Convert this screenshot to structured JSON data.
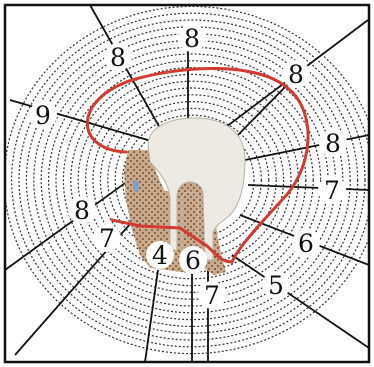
{
  "diagram": {
    "labels": [
      {
        "id": "top",
        "text": "8"
      },
      {
        "id": "upper-left",
        "text": "8"
      },
      {
        "id": "upper-right",
        "text": "8"
      },
      {
        "id": "left",
        "text": "9"
      },
      {
        "id": "right-upper",
        "text": "8"
      },
      {
        "id": "right-middle",
        "text": "7"
      },
      {
        "id": "right-lower",
        "text": "6"
      },
      {
        "id": "bottom-right",
        "text": "5"
      },
      {
        "id": "lower-left",
        "text": "8"
      },
      {
        "id": "lower-left-inner",
        "text": "7"
      },
      {
        "id": "bottom-inner",
        "text": "4"
      },
      {
        "id": "bottom-center",
        "text": "6"
      },
      {
        "id": "bottom-stem",
        "text": "7"
      }
    ],
    "colors": {
      "outline": "#d23a32",
      "contour": "#333333",
      "tooth": "#ece8e2",
      "bone": "#c9a98a",
      "border": "#111111"
    }
  }
}
